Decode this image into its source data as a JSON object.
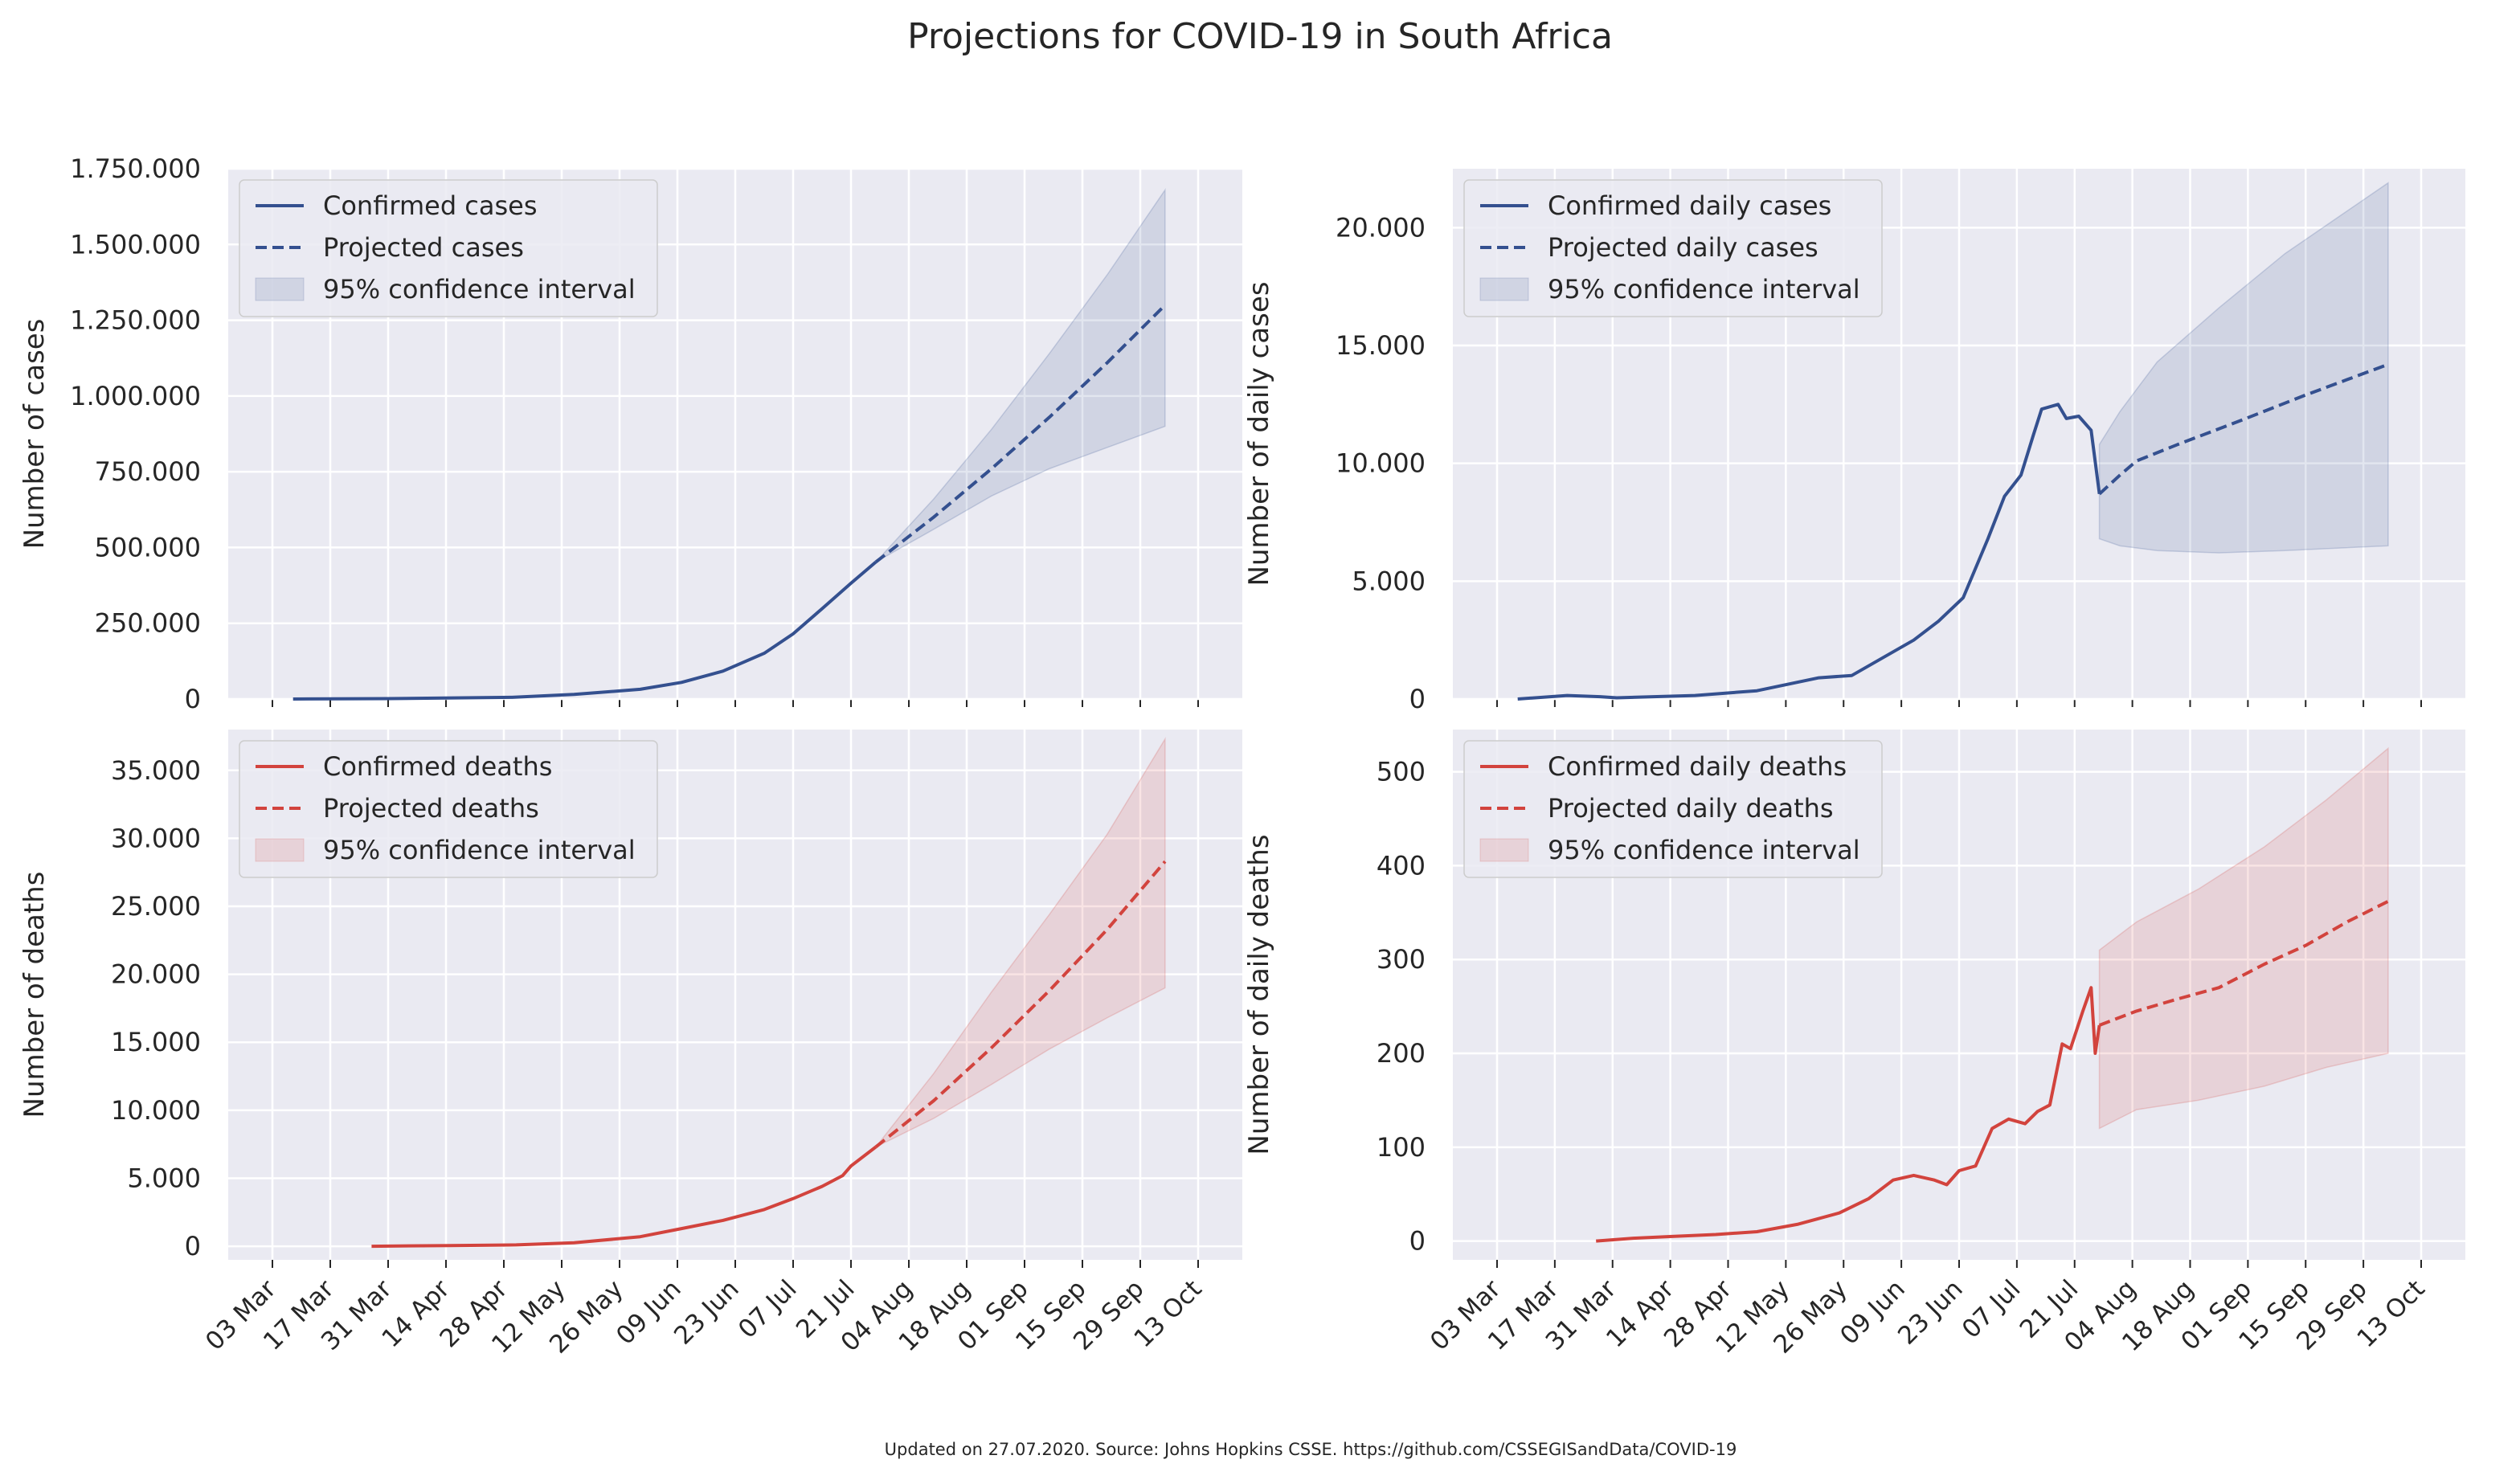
{
  "title": "Projections for COVID-19 in South Africa",
  "footer": "Updated on 27.07.2020. Source: Johns Hopkins CSSE. https://github.com/CSSEGISandData/COVID-19",
  "colors": {
    "cases": "#34508f",
    "deaths": "#d2433d",
    "panel_bg": "#eaeaf2",
    "grid": "#ffffff"
  },
  "x_axis": {
    "start": "2020-03-03",
    "end": "2020-10-13",
    "tick_labels": [
      "03 Mar",
      "17 Mar",
      "31 Mar",
      "14 Apr",
      "28 Apr",
      "12 May",
      "26 May",
      "09 Jun",
      "23 Jun",
      "07 Jul",
      "21 Jul",
      "04 Aug",
      "18 Aug",
      "01 Sep",
      "15 Sep",
      "29 Sep",
      "13 Oct"
    ]
  },
  "chart_data": [
    {
      "type": "line",
      "ylabel": "Number of cases",
      "ylim": [
        0,
        1750000
      ],
      "yticks": [
        0,
        250000,
        500000,
        750000,
        1000000,
        1250000,
        1500000,
        1750000
      ],
      "ytick_labels": [
        "0",
        "250.000",
        "500.000",
        "750.000",
        "1.000.000",
        "1.250.000",
        "1.500.000",
        "1.750.000"
      ],
      "legend": [
        "Confirmed cases",
        "Projected cases",
        "95% confidence interval"
      ],
      "legend_position": "top-left",
      "color": "cases",
      "series": [
        {
          "name": "Confirmed cases",
          "style": "solid",
          "x": [
            "2020-03-08",
            "2020-03-31",
            "2020-04-30",
            "2020-05-15",
            "2020-05-31",
            "2020-06-10",
            "2020-06-20",
            "2020-06-30",
            "2020-07-07",
            "2020-07-14",
            "2020-07-21",
            "2020-07-27"
          ],
          "y": [
            0,
            1400,
            5600,
            15000,
            32000,
            55000,
            92000,
            151000,
            215000,
            298000,
            382000,
            452000
          ]
        },
        {
          "name": "Projected cases",
          "style": "dashed",
          "x": [
            "2020-07-27",
            "2020-08-10",
            "2020-08-24",
            "2020-09-07",
            "2020-09-21",
            "2020-10-05"
          ],
          "y": [
            452000,
            600000,
            760000,
            930000,
            1110000,
            1300000
          ]
        }
      ],
      "band": {
        "x": [
          "2020-07-27",
          "2020-08-10",
          "2020-08-24",
          "2020-09-07",
          "2020-09-21",
          "2020-10-05"
        ],
        "lower": [
          452000,
          560000,
          670000,
          760000,
          830000,
          900000
        ],
        "upper": [
          452000,
          660000,
          890000,
          1140000,
          1400000,
          1680000
        ]
      }
    },
    {
      "type": "line",
      "ylabel": "Number of daily cases",
      "ylim": [
        0,
        22500
      ],
      "yticks": [
        0,
        5000,
        10000,
        15000,
        20000
      ],
      "ytick_labels": [
        "0",
        "5.000",
        "10.000",
        "15.000",
        "20.000"
      ],
      "legend": [
        "Confirmed daily cases",
        "Projected daily cases",
        "95% confidence interval"
      ],
      "legend_position": "top-left",
      "color": "cases",
      "series": [
        {
          "name": "Confirmed daily cases",
          "style": "solid",
          "x": [
            "2020-03-08",
            "2020-03-20",
            "2020-03-28",
            "2020-04-01",
            "2020-04-20",
            "2020-05-05",
            "2020-05-20",
            "2020-05-28",
            "2020-06-05",
            "2020-06-12",
            "2020-06-18",
            "2020-06-24",
            "2020-06-30",
            "2020-07-04",
            "2020-07-08",
            "2020-07-11",
            "2020-07-13",
            "2020-07-17",
            "2020-07-19",
            "2020-07-22",
            "2020-07-25",
            "2020-07-27"
          ],
          "y": [
            0,
            150,
            100,
            50,
            150,
            350,
            900,
            1000,
            1800,
            2500,
            3300,
            4300,
            6800,
            8600,
            9500,
            11200,
            12300,
            12500,
            11900,
            12000,
            11400,
            8700
          ]
        },
        {
          "name": "Projected daily cases",
          "style": "dashed",
          "x": [
            "2020-07-27",
            "2020-08-01",
            "2020-08-05",
            "2020-08-15",
            "2020-08-30",
            "2020-09-15",
            "2020-10-05"
          ],
          "y": [
            8700,
            9500,
            10100,
            10800,
            11800,
            12900,
            14200
          ]
        }
      ],
      "band": {
        "x": [
          "2020-07-27",
          "2020-08-01",
          "2020-08-10",
          "2020-08-25",
          "2020-09-10",
          "2020-10-05"
        ],
        "lower": [
          6800,
          6500,
          6300,
          6200,
          6300,
          6500
        ],
        "upper": [
          10800,
          12200,
          14300,
          16600,
          18900,
          21900
        ]
      }
    },
    {
      "type": "line",
      "ylabel": "Number of deaths",
      "ylim": [
        -1000,
        38000
      ],
      "yticks": [
        0,
        5000,
        10000,
        15000,
        20000,
        25000,
        30000,
        35000
      ],
      "ytick_labels": [
        "0",
        "5.000",
        "10.000",
        "15.000",
        "20.000",
        "25.000",
        "30.000",
        "35.000"
      ],
      "legend": [
        "Confirmed deaths",
        "Projected deaths",
        "95% confidence interval"
      ],
      "legend_position": "top-left",
      "color": "deaths",
      "series": [
        {
          "name": "Confirmed deaths",
          "style": "solid",
          "x": [
            "2020-03-27",
            "2020-04-15",
            "2020-05-01",
            "2020-05-15",
            "2020-05-31",
            "2020-06-10",
            "2020-06-20",
            "2020-06-30",
            "2020-07-07",
            "2020-07-14",
            "2020-07-19",
            "2020-07-21",
            "2020-07-27"
          ],
          "y": [
            0,
            50,
            100,
            250,
            700,
            1300,
            1900,
            2700,
            3500,
            4400,
            5200,
            5900,
            7300
          ]
        },
        {
          "name": "Projected deaths",
          "style": "dashed",
          "x": [
            "2020-07-27",
            "2020-08-10",
            "2020-08-24",
            "2020-09-07",
            "2020-09-21",
            "2020-10-05"
          ],
          "y": [
            7300,
            10700,
            14600,
            18800,
            23300,
            28300
          ]
        }
      ],
      "band": {
        "x": [
          "2020-07-27",
          "2020-08-10",
          "2020-08-24",
          "2020-09-07",
          "2020-09-21",
          "2020-10-05"
        ],
        "lower": [
          7300,
          9400,
          11900,
          14500,
          16800,
          19000
        ],
        "upper": [
          7300,
          12700,
          18700,
          24400,
          30300,
          37300
        ]
      }
    },
    {
      "type": "line",
      "ylabel": "Number of daily deaths",
      "ylim": [
        -20,
        545
      ],
      "yticks": [
        0,
        100,
        200,
        300,
        400,
        500
      ],
      "ytick_labels": [
        "0",
        "100",
        "200",
        "300",
        "400",
        "500"
      ],
      "legend": [
        "Confirmed daily deaths",
        "Projected daily deaths",
        "95% confidence interval"
      ],
      "legend_position": "top-left",
      "color": "deaths",
      "series": [
        {
          "name": "Confirmed daily deaths",
          "style": "solid",
          "x": [
            "2020-03-27",
            "2020-04-05",
            "2020-04-15",
            "2020-04-25",
            "2020-05-05",
            "2020-05-15",
            "2020-05-25",
            "2020-06-01",
            "2020-06-07",
            "2020-06-12",
            "2020-06-17",
            "2020-06-20",
            "2020-06-23",
            "2020-06-27",
            "2020-07-01",
            "2020-07-05",
            "2020-07-09",
            "2020-07-12",
            "2020-07-15",
            "2020-07-18",
            "2020-07-20",
            "2020-07-23",
            "2020-07-25",
            "2020-07-26",
            "2020-07-27"
          ],
          "y": [
            0,
            3,
            5,
            7,
            10,
            18,
            30,
            45,
            65,
            70,
            65,
            60,
            75,
            80,
            120,
            130,
            125,
            138,
            145,
            210,
            205,
            245,
            270,
            200,
            230
          ]
        },
        {
          "name": "Projected daily deaths",
          "style": "dashed",
          "x": [
            "2020-07-27",
            "2020-08-05",
            "2020-08-15",
            "2020-08-25",
            "2020-09-05",
            "2020-09-15",
            "2020-09-25",
            "2020-10-05"
          ],
          "y": [
            230,
            245,
            258,
            270,
            295,
            315,
            340,
            362
          ]
        }
      ],
      "band": {
        "x": [
          "2020-07-27",
          "2020-08-05",
          "2020-08-20",
          "2020-09-05",
          "2020-09-20",
          "2020-10-05"
        ],
        "lower": [
          120,
          140,
          150,
          165,
          185,
          200
        ],
        "upper": [
          310,
          340,
          375,
          420,
          470,
          525
        ]
      }
    }
  ]
}
